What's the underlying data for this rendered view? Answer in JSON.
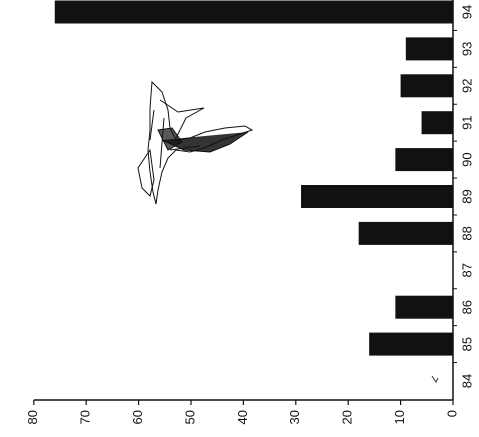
{
  "chart_data": {
    "type": "bar",
    "orientation": "horizontal-bars, figure rotated 90 degrees counter-clockwise",
    "categories": [
      "84",
      "85",
      "86",
      "87",
      "88",
      "89",
      "90",
      "91",
      "92",
      "93",
      "94"
    ],
    "values": [
      0,
      16,
      11,
      0,
      18,
      29,
      11,
      6,
      10,
      9,
      76
    ],
    "value_axis": {
      "ticks": [
        "0",
        "10",
        "20",
        "30",
        "40",
        "50",
        "60",
        "70",
        "80"
      ],
      "range": [
        0,
        80
      ]
    },
    "grid": false,
    "legend": "none",
    "bar_color": "#111111",
    "inset": "hand-drawn sketch of a mosquito (decorative)"
  }
}
